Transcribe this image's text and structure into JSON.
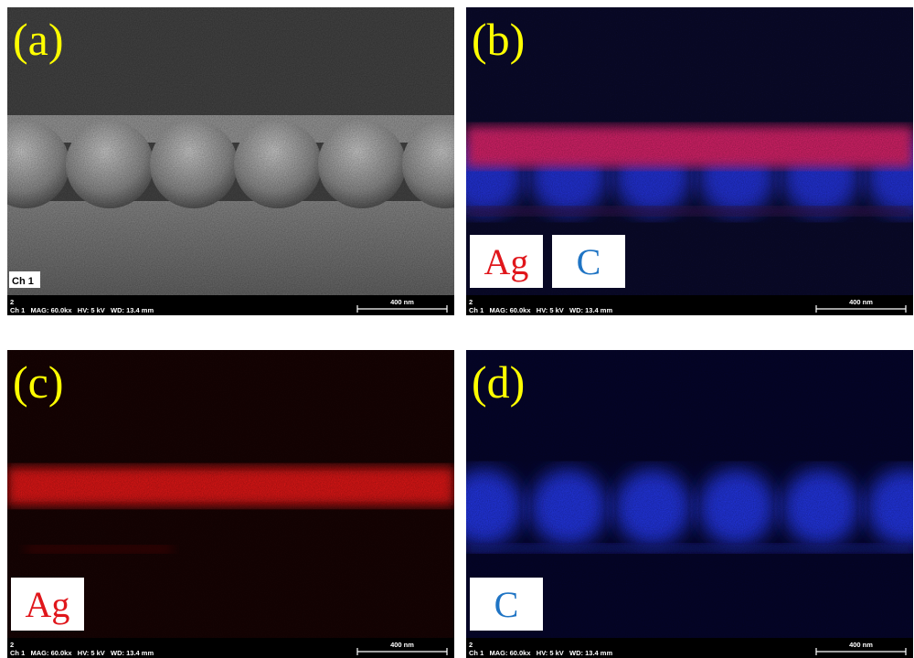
{
  "panels": [
    {
      "label": "(a)",
      "tag": "Ch 1",
      "footer": {
        "id": "2",
        "info": "Ch 1   MAG: 60.0kx   HV: 5 kV   WD: 13.4 mm",
        "scale": "400 nm"
      }
    },
    {
      "label": "(b)",
      "legend": [
        "Ag",
        "C"
      ],
      "footer": {
        "id": "2",
        "info": "Ch 1   MAG: 60.0kx   HV: 5 kV   WD: 13.4 mm",
        "scale": "400 nm"
      }
    },
    {
      "label": "(c)",
      "legend": [
        "Ag"
      ],
      "footer": {
        "id": "2",
        "info": "Ch 1   MAG: 60.0kx   HV: 5 kV   WD: 13.4 mm",
        "scale": "400 nm"
      }
    },
    {
      "label": "(d)",
      "legend": [
        "C"
      ],
      "footer": {
        "id": "2",
        "info": "Ch 1   MAG: 60.0kx   HV: 5 kV   WD: 13.4 mm",
        "scale": "400 nm"
      }
    }
  ]
}
